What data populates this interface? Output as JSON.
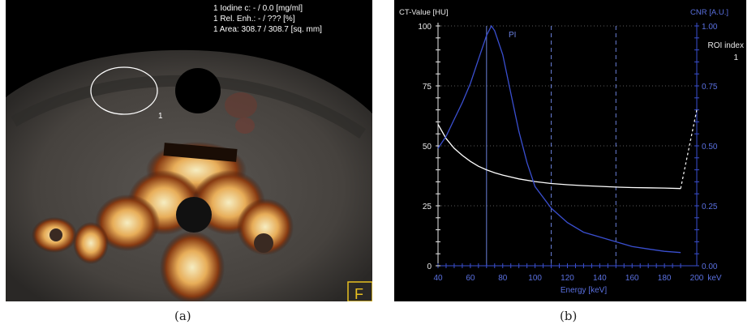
{
  "panel_a": {
    "overlay_lines": [
      "1 Iodine c:  - / 0.0 [mg/ml]",
      "1 Rel. Enh.:  - / ??? [%]",
      "1 Area:  308.7 / 308.7 [sq. mm]"
    ],
    "roi_label": "1",
    "corner_marker": "F",
    "caption": "(a)"
  },
  "panel_b": {
    "caption": "(b)"
  },
  "chart_data": {
    "type": "line",
    "title": "",
    "xlabel": "Energy [keV]",
    "ylabel": "CT-Value [HU]",
    "y2label": "CNR [A.U.]",
    "xlim": [
      40,
      200
    ],
    "ylim": [
      0,
      100
    ],
    "y2lim": [
      0,
      1
    ],
    "x_ticks": [
      "40",
      "60",
      "80",
      "100",
      "120",
      "140",
      "160",
      "180",
      "200"
    ],
    "x_unit_label": "keV",
    "y_ticks": [
      "0",
      "25",
      "50",
      "75",
      "100"
    ],
    "y2_ticks": [
      "0.00",
      "0.25",
      "0.50",
      "0.75",
      "1.00"
    ],
    "legend_title": "ROI index",
    "legend_entry": "1",
    "marker_label": "PI",
    "vertical_lines": [
      {
        "x": 70,
        "style": "solid"
      },
      {
        "x": 110,
        "style": "dashed"
      },
      {
        "x": 150,
        "style": "dashed"
      }
    ],
    "series": [
      {
        "axis": "left",
        "color": "#ffffff",
        "x": [
          40,
          45,
          50,
          55,
          60,
          65,
          70,
          75,
          80,
          90,
          100,
          110,
          120,
          130,
          140,
          150,
          160,
          170,
          180,
          190,
          200
        ],
        "y": [
          59,
          53,
          49,
          46,
          43.5,
          41.5,
          40,
          38.8,
          37.8,
          36.2,
          35.1,
          34.3,
          33.8,
          33.4,
          33.1,
          32.8,
          32.6,
          32.5,
          32.4,
          32.2,
          65
        ],
        "dashed_from_x": 190
      },
      {
        "axis": "right",
        "color": "#3a4fd0",
        "x": [
          40,
          45,
          50,
          55,
          60,
          65,
          70,
          73,
          75,
          80,
          85,
          90,
          95,
          100,
          110,
          120,
          130,
          140,
          150,
          160,
          170,
          180,
          190
        ],
        "y": [
          0.49,
          0.54,
          0.61,
          0.68,
          0.76,
          0.86,
          0.96,
          1.0,
          0.98,
          0.88,
          0.72,
          0.56,
          0.43,
          0.33,
          0.24,
          0.18,
          0.14,
          0.12,
          0.1,
          0.08,
          0.07,
          0.06,
          0.055
        ]
      }
    ]
  }
}
